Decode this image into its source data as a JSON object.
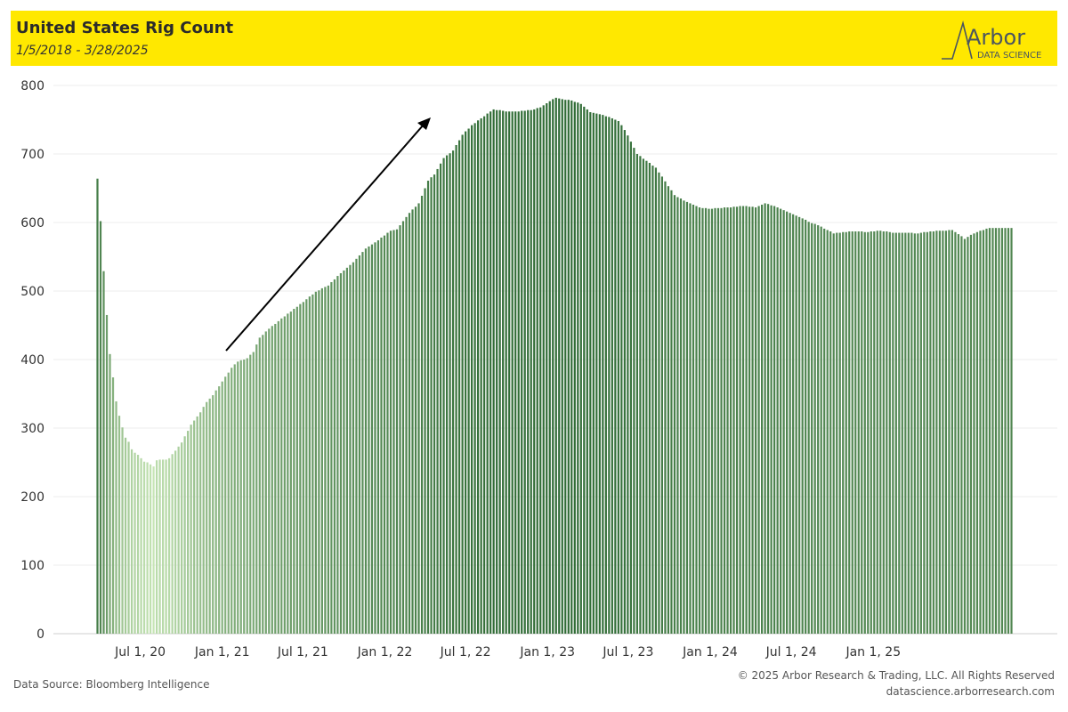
{
  "header": {
    "title": "United States Rig Count",
    "subtitle": "1/5/2018 - 3/28/2025",
    "logo_word": "Arbor",
    "logo_tagline": "DATA SCIENCE",
    "background_color": "#ffe800"
  },
  "footer": {
    "source": "Data Source: Bloomberg Intelligence",
    "copyright": "© 2025 Arbor Research & Trading, LLC. All Rights Reserved",
    "website": "datascience.arborresearch.com"
  },
  "chart_data": {
    "type": "bar",
    "title": "United States Rig Count",
    "subtitle": "1/5/2018 - 3/28/2025",
    "ylim": [
      0,
      800
    ],
    "yticks": [
      0,
      100,
      200,
      300,
      400,
      500,
      600,
      700,
      800
    ],
    "xtick_labels": [
      "Jul 1, 20",
      "Jan 1, 21",
      "Jul 1, 21",
      "Jan 1, 22",
      "Jul 1, 22",
      "Jan 1, 23",
      "Jul 1, 23",
      "Jan 1, 24",
      "Jul 1, 24",
      "Jan 1, 25"
    ],
    "grid": "horizontal",
    "bar_frequency": "weekly",
    "color_scale": {
      "low": "#c6e5b5",
      "high": "#2f6b35"
    },
    "annotation": "upward arrow from about Oct 2020 to about Apr 2022",
    "first_bar_date": "2020-03-27",
    "keypoints": [
      [
        0,
        664
      ],
      [
        1,
        602
      ],
      [
        2,
        529
      ],
      [
        3,
        465
      ],
      [
        4,
        408
      ],
      [
        5,
        374
      ],
      [
        6,
        339
      ],
      [
        7,
        318
      ],
      [
        8,
        301
      ],
      [
        9,
        286
      ],
      [
        10,
        280
      ],
      [
        11,
        269
      ],
      [
        12,
        264
      ],
      [
        13,
        261
      ],
      [
        14,
        256
      ],
      [
        15,
        251
      ],
      [
        16,
        250
      ],
      [
        17,
        247
      ],
      [
        18,
        244
      ],
      [
        19,
        253
      ],
      [
        20,
        254
      ],
      [
        21,
        254
      ],
      [
        22,
        254
      ],
      [
        23,
        256
      ],
      [
        25,
        267
      ],
      [
        27,
        279
      ],
      [
        30,
        305
      ],
      [
        33,
        323
      ],
      [
        35,
        338
      ],
      [
        37,
        348
      ],
      [
        40,
        368
      ],
      [
        43,
        388
      ],
      [
        45,
        397
      ],
      [
        48,
        402
      ],
      [
        50,
        411
      ],
      [
        52,
        432
      ],
      [
        55,
        445
      ],
      [
        58,
        456
      ],
      [
        62,
        470
      ],
      [
        66,
        484
      ],
      [
        70,
        499
      ],
      [
        74,
        508
      ],
      [
        78,
        526
      ],
      [
        82,
        542
      ],
      [
        86,
        562
      ],
      [
        90,
        574
      ],
      [
        94,
        588
      ],
      [
        96,
        590
      ],
      [
        100,
        614
      ],
      [
        103,
        628
      ],
      [
        106,
        661
      ],
      [
        108,
        670
      ],
      [
        111,
        694
      ],
      [
        114,
        705
      ],
      [
        117,
        728
      ],
      [
        120,
        742
      ],
      [
        123,
        752
      ],
      [
        127,
        765
      ],
      [
        131,
        762
      ],
      [
        135,
        762
      ],
      [
        139,
        764
      ],
      [
        142,
        768
      ],
      [
        145,
        777
      ],
      [
        147,
        782
      ],
      [
        149,
        780
      ],
      [
        152,
        778
      ],
      [
        155,
        773
      ],
      [
        158,
        761
      ],
      [
        162,
        757
      ],
      [
        165,
        752
      ],
      [
        167,
        748
      ],
      [
        169,
        735
      ],
      [
        171,
        718
      ],
      [
        173,
        700
      ],
      [
        176,
        690
      ],
      [
        179,
        680
      ],
      [
        182,
        660
      ],
      [
        185,
        640
      ],
      [
        188,
        632
      ],
      [
        190,
        628
      ],
      [
        193,
        622
      ],
      [
        196,
        620
      ],
      [
        199,
        621
      ],
      [
        203,
        622
      ],
      [
        207,
        624
      ],
      [
        211,
        622
      ],
      [
        214,
        628
      ],
      [
        217,
        624
      ],
      [
        220,
        618
      ],
      [
        223,
        612
      ],
      [
        226,
        606
      ],
      [
        228,
        601
      ],
      [
        231,
        596
      ],
      [
        234,
        589
      ],
      [
        236,
        584
      ],
      [
        239,
        586
      ],
      [
        243,
        587
      ],
      [
        247,
        586
      ],
      [
        251,
        588
      ],
      [
        255,
        585
      ],
      [
        259,
        585
      ],
      [
        263,
        584
      ],
      [
        267,
        587
      ],
      [
        271,
        588
      ],
      [
        274,
        589
      ],
      [
        276,
        583
      ],
      [
        278,
        576
      ],
      [
        280,
        582
      ],
      [
        282,
        586
      ],
      [
        284,
        589
      ],
      [
        286,
        592
      ],
      [
        289,
        592
      ],
      [
        291,
        592
      ],
      [
        293,
        592
      ]
    ]
  }
}
